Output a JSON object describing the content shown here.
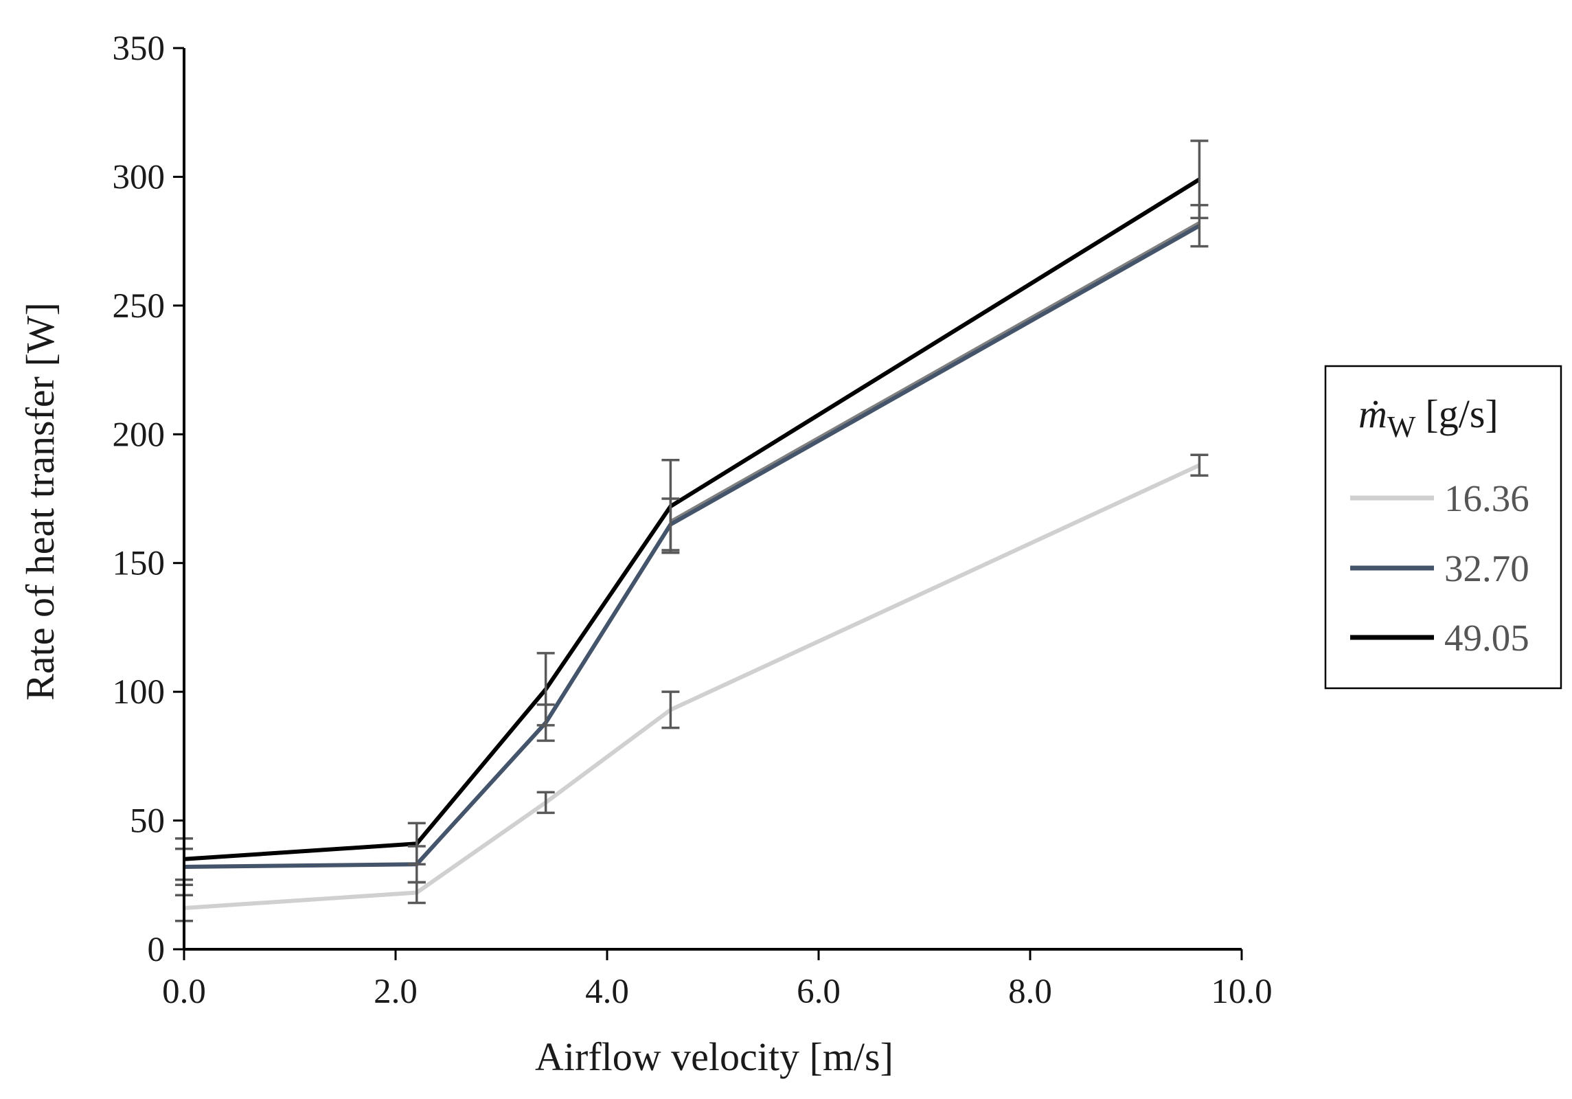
{
  "chart_data": {
    "type": "line",
    "xlabel": "Airflow velocity [m/s]",
    "ylabel": "Rate of heat transfer [W]",
    "xlim": [
      0,
      10
    ],
    "ylim": [
      0,
      350
    ],
    "xticks": [
      "0.0",
      "2.0",
      "4.0",
      "6.0",
      "8.0",
      "10.0"
    ],
    "yticks": [
      "0",
      "50",
      "100",
      "150",
      "200",
      "250",
      "300",
      "350"
    ],
    "grid": false,
    "legend": {
      "placement": "right",
      "title_symbol": "ṁ",
      "title_subscript": "W",
      "title_unit": "[g/s]"
    },
    "series": [
      {
        "name": "16.36",
        "color": "#d0d0d0",
        "x": [
          0.0,
          2.2,
          3.42,
          4.6,
          9.6
        ],
        "y": [
          16,
          22,
          57,
          93,
          188
        ],
        "err": [
          5,
          4,
          4,
          7,
          4
        ]
      },
      {
        "name": "32.70",
        "color": "#44546a",
        "x": [
          0.0,
          2.2,
          3.42,
          4.6,
          9.6
        ],
        "y": [
          32,
          33,
          88,
          165,
          281
        ],
        "err": [
          7,
          7,
          7,
          10,
          8
        ]
      },
      {
        "name": "49.05",
        "color": "#000000",
        "x": [
          0.0,
          2.2,
          3.42,
          4.6,
          9.6
        ],
        "y": [
          35,
          41,
          101,
          172,
          299
        ],
        "err": [
          8,
          8,
          14,
          18,
          15
        ]
      }
    ],
    "hidden_series": [
      {
        "color": "#808080",
        "x": [
          4.6,
          9.6
        ],
        "y": [
          166,
          282
        ]
      }
    ],
    "errorbar_color": "#595959"
  }
}
